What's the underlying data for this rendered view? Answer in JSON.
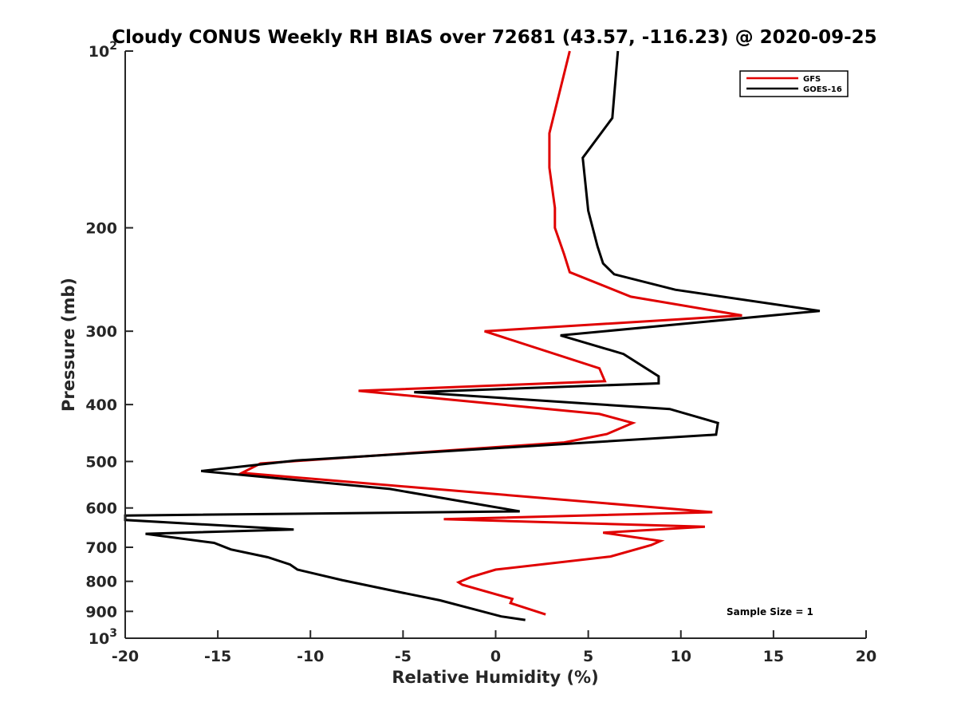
{
  "chart_data": {
    "type": "line",
    "title": "Cloudy CONUS Weekly RH BIAS over 72681 (43.57, -116.23) @ 2020-09-25",
    "xlabel": "Relative Humidity (%)",
    "ylabel": "Pressure (mb)",
    "xlim": [
      -20,
      20
    ],
    "ylim": [
      100,
      1000
    ],
    "y_scale": "log",
    "y_reversed": true,
    "x_ticks": [
      "-20",
      "-15",
      "-10",
      "-5",
      "0",
      "5",
      "10",
      "15",
      "20"
    ],
    "y_ticks": [
      {
        "value": 100,
        "base": "10",
        "exp": "2"
      },
      {
        "value": 200,
        "label": "200"
      },
      {
        "value": 300,
        "label": "300"
      },
      {
        "value": 400,
        "label": "400"
      },
      {
        "value": 500,
        "label": "500"
      },
      {
        "value": 600,
        "label": "600"
      },
      {
        "value": 700,
        "label": "700"
      },
      {
        "value": 800,
        "label": "800"
      },
      {
        "value": 900,
        "label": "900"
      },
      {
        "value": 1000,
        "base": "10",
        "exp": "3"
      }
    ],
    "legend_position": "top-right",
    "annotation": "Sample Size = 1",
    "series": [
      {
        "name": "GFS",
        "color": "#e00000",
        "x": [
          4.0,
          2.9,
          2.9,
          3.2,
          3.2,
          3.7,
          4.0,
          7.3,
          13.3,
          -0.6,
          5.6,
          5.9,
          -7.4,
          5.6,
          7.4,
          6.0,
          3.7,
          -12.7,
          -13.7,
          11.7,
          -2.8,
          11.3,
          5.8,
          8.9,
          8.4,
          6.2,
          0.0,
          -1.3,
          -2.0,
          -1.8,
          0.9,
          0.8,
          2.7
        ],
        "y": [
          100,
          138,
          158,
          185,
          200,
          222,
          238,
          262,
          282,
          300,
          347,
          365,
          379,
          415,
          430,
          449,
          464,
          504,
          523,
          610,
          627,
          646,
          661,
          683,
          694,
          726,
          764,
          786,
          803,
          811,
          857,
          871,
          911
        ]
      },
      {
        "name": "GOES-16",
        "color": "#000000",
        "x": [
          6.6,
          6.3,
          4.7,
          5.0,
          5.5,
          5.8,
          6.4,
          9.7,
          17.5,
          3.5,
          6.9,
          8.8,
          8.8,
          -4.4,
          9.4,
          12.0,
          11.9,
          -10.8,
          -15.9,
          -5.7,
          1.3,
          -20.0,
          -20.0,
          -10.9,
          -18.9,
          -15.2,
          -14.3,
          -12.3,
          -11.1,
          -10.7,
          -8.3,
          -5.0,
          -3.0,
          -1.5,
          0.3,
          1.6
        ],
        "y": [
          100,
          130,
          152,
          187,
          215,
          230,
          240,
          255,
          277,
          305,
          328,
          358,
          368,
          381,
          407,
          430,
          450,
          498,
          519,
          557,
          608,
          618,
          629,
          653,
          664,
          688,
          706,
          728,
          749,
          764,
          796,
          837,
          862,
          887,
          918,
          931
        ]
      }
    ]
  }
}
